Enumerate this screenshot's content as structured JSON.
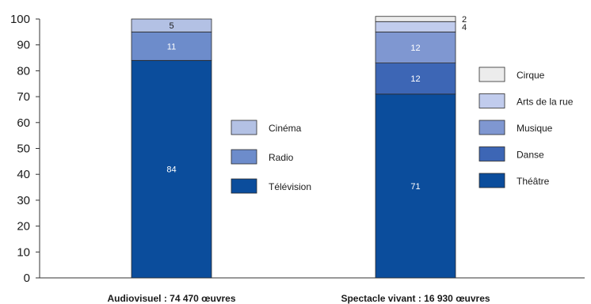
{
  "chart_data": {
    "type": "bar",
    "stacked": true,
    "ylim": [
      0,
      100
    ],
    "yticks": [
      0,
      10,
      20,
      30,
      40,
      50,
      60,
      70,
      80,
      90,
      100
    ],
    "categories": [
      "Audiovisuel : 74 470 œuvres",
      "Spectacle vivant : 16 930 œuvres"
    ],
    "bars": [
      {
        "category": "Audiovisuel : 74 470 œuvres",
        "segments": [
          {
            "name": "Télévision",
            "value": 84,
            "label": "84",
            "color": "#0b4d9c"
          },
          {
            "name": "Radio",
            "value": 11,
            "label": "11",
            "color": "#6d8ccb"
          },
          {
            "name": "Cinéma",
            "value": 5,
            "label": "5",
            "color": "#b3c1e4"
          }
        ],
        "legend": [
          "Cinéma",
          "Radio",
          "Télévision"
        ]
      },
      {
        "category": "Spectacle vivant : 16 930 œuvres",
        "segments": [
          {
            "name": "Théâtre",
            "value": 71,
            "label": "71",
            "color": "#0b4d9c"
          },
          {
            "name": "Danse",
            "value": 12,
            "label": "12",
            "color": "#3d66b5"
          },
          {
            "name": "Musique",
            "value": 12,
            "label": "12",
            "color": "#7f97d1"
          },
          {
            "name": "Arts de la rue",
            "value": 4,
            "label": "4",
            "color": "#c1cced"
          },
          {
            "name": "Cirque",
            "value": 2,
            "label": "2",
            "color": "#ececec"
          }
        ],
        "legend": [
          "Cirque",
          "Arts de la rue",
          "Musique",
          "Danse",
          "Théâtre"
        ]
      }
    ],
    "grid": false,
    "legend_placement": "right of each bar"
  }
}
